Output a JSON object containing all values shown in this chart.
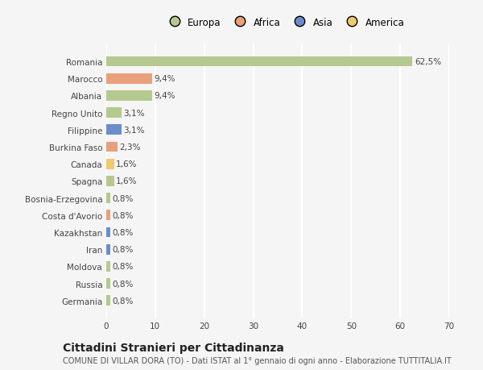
{
  "categories": [
    "Germania",
    "Russia",
    "Moldova",
    "Iran",
    "Kazakhstan",
    "Costa d'Avorio",
    "Bosnia-Erzegovina",
    "Spagna",
    "Canada",
    "Burkina Faso",
    "Filippine",
    "Regno Unito",
    "Albania",
    "Marocco",
    "Romania"
  ],
  "values": [
    0.8,
    0.8,
    0.8,
    0.8,
    0.8,
    0.8,
    0.8,
    1.6,
    1.6,
    2.3,
    3.1,
    3.1,
    9.4,
    9.4,
    62.5
  ],
  "colors": [
    "#b5c98e",
    "#b5c98e",
    "#b5c98e",
    "#6b8ecb",
    "#6b8ecb",
    "#e8a07a",
    "#b5c98e",
    "#b5c98e",
    "#f0c96e",
    "#e8a07a",
    "#6b8ecb",
    "#b5c98e",
    "#b5c98e",
    "#e8a07a",
    "#b5c98e"
  ],
  "labels": [
    "0,8%",
    "0,8%",
    "0,8%",
    "0,8%",
    "0,8%",
    "0,8%",
    "0,8%",
    "1,6%",
    "1,6%",
    "2,3%",
    "3,1%",
    "3,1%",
    "9,4%",
    "9,4%",
    "62,5%"
  ],
  "legend_labels": [
    "Europa",
    "Africa",
    "Asia",
    "America"
  ],
  "legend_colors": [
    "#b5c98e",
    "#e8a07a",
    "#6b8ecb",
    "#f0c96e"
  ],
  "xlim": [
    0,
    70
  ],
  "xticks": [
    0,
    10,
    20,
    30,
    40,
    50,
    60,
    70
  ],
  "title": "Cittadini Stranieri per Cittadinanza",
  "subtitle": "COMUNE DI VILLAR DORA (TO) - Dati ISTAT al 1° gennaio di ogni anno - Elaborazione TUTTITALIA.IT",
  "bg_color": "#f5f5f5",
  "grid_color": "#ffffff",
  "bar_height": 0.6,
  "title_fontsize": 10,
  "subtitle_fontsize": 7,
  "label_fontsize": 7.5,
  "tick_fontsize": 7.5,
  "legend_fontsize": 8.5
}
